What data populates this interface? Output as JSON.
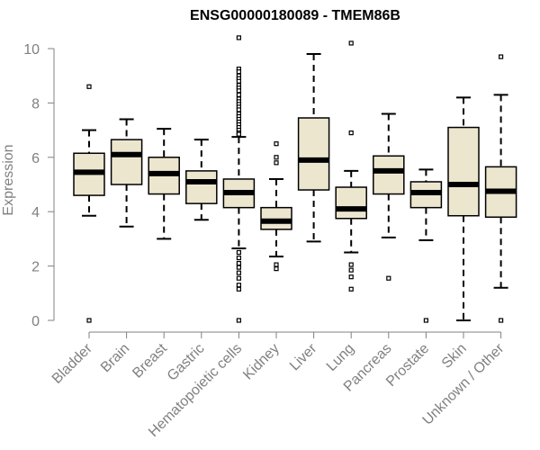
{
  "chart_data": {
    "type": "boxplot",
    "title": "ENSG00000180089 - TMEM86B",
    "xlabel": "",
    "ylabel": "Expression",
    "ylim": [
      0,
      10
    ],
    "yticks": [
      0,
      2,
      4,
      6,
      8,
      10
    ],
    "categories": [
      "Bladder",
      "Brain",
      "Breast",
      "Gastric",
      "Hematopoietic cells",
      "Kidney",
      "Liver",
      "Lung",
      "Pancreas",
      "Prostate",
      "Skin",
      "Unknown / Other"
    ],
    "boxes": [
      {
        "min": 3.85,
        "q1": 4.6,
        "median": 5.45,
        "q3": 6.15,
        "max": 7.0,
        "outliers": [
          8.6,
          0.0
        ]
      },
      {
        "min": 3.45,
        "q1": 5.0,
        "median": 6.1,
        "q3": 6.65,
        "max": 7.4,
        "outliers": []
      },
      {
        "min": 3.0,
        "q1": 4.65,
        "median": 5.4,
        "q3": 6.0,
        "max": 7.05,
        "outliers": []
      },
      {
        "min": 3.7,
        "q1": 4.3,
        "median": 5.1,
        "q3": 5.5,
        "max": 6.65,
        "outliers": []
      },
      {
        "min": 2.65,
        "q1": 4.15,
        "median": 4.7,
        "q3": 5.2,
        "max": 6.75,
        "outliers": [
          10.4,
          9.25,
          9.15,
          9.0,
          8.9,
          8.8,
          8.65,
          8.55,
          8.45,
          8.3,
          8.15,
          8.05,
          7.95,
          7.85,
          7.75,
          7.6,
          7.5,
          7.4,
          7.3,
          7.2,
          7.1,
          7.0,
          6.9,
          6.85,
          2.5,
          2.3,
          2.1,
          1.95,
          1.75,
          1.55,
          1.3,
          1.15,
          0.0
        ]
      },
      {
        "min": 2.35,
        "q1": 3.35,
        "median": 3.65,
        "q3": 4.15,
        "max": 5.2,
        "outliers": [
          6.5,
          6.0,
          5.8,
          2.05,
          1.9
        ]
      },
      {
        "min": 2.9,
        "q1": 4.8,
        "median": 5.9,
        "q3": 7.45,
        "max": 9.8,
        "outliers": []
      },
      {
        "min": 2.5,
        "q1": 3.75,
        "median": 4.1,
        "q3": 4.9,
        "max": 5.5,
        "outliers": [
          10.2,
          6.9,
          2.05,
          1.85,
          1.6,
          1.15
        ]
      },
      {
        "min": 3.05,
        "q1": 4.65,
        "median": 5.5,
        "q3": 6.05,
        "max": 7.6,
        "outliers": [
          1.55
        ]
      },
      {
        "min": 2.95,
        "q1": 4.15,
        "median": 4.7,
        "q3": 5.1,
        "max": 5.55,
        "outliers": [
          0.0
        ]
      },
      {
        "min": 0.0,
        "q1": 3.85,
        "median": 5.0,
        "q3": 7.1,
        "max": 8.2,
        "outliers": []
      },
      {
        "min": 1.2,
        "q1": 3.8,
        "median": 4.75,
        "q3": 5.65,
        "max": 8.3,
        "outliers": [
          9.7,
          0.0
        ]
      }
    ],
    "colors": {
      "box_fill": "#ede6cf",
      "line": "#000000",
      "axis_text": "#808080"
    }
  }
}
